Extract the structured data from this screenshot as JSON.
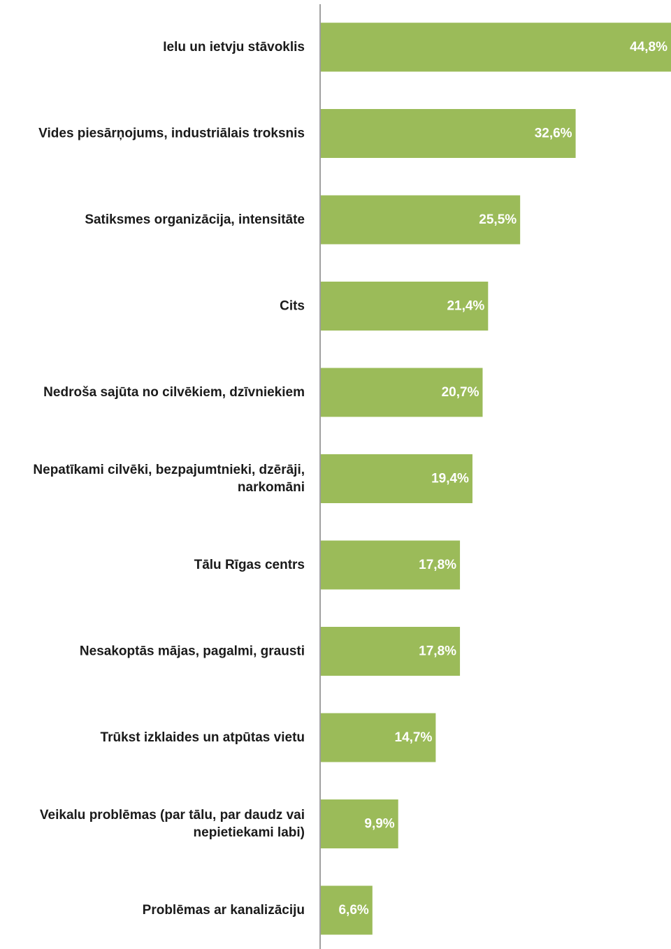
{
  "chart_data": {
    "type": "bar",
    "orientation": "horizontal",
    "categories": [
      "Ielu un ietvju stāvoklis",
      "Vides piesārņojums, industriālais troksnis",
      "Satiksmes organizācija, intensitāte",
      "Cits",
      "Nedroša sajūta no cilvēkiem, dzīvniekiem",
      "Nepatīkami cilvēki, bezpajumtnieki, dzērāji, narkomāni",
      "Tālu Rīgas centrs",
      "Nesakoptās mājas, pagalmi, grausti",
      "Trūkst izklaides un atpūtas vietu",
      "Veikalu problēmas (par tālu, par daudz vai nepietiekami labi)",
      "Problēmas ar kanalizāciju"
    ],
    "category_lines": [
      [
        "Ielu un ietvju stāvoklis"
      ],
      [
        "Vides piesārņojums, industriālais troksnis"
      ],
      [
        "Satiksmes organizācija, intensitāte"
      ],
      [
        "Cits"
      ],
      [
        "Nedroša sajūta no cilvēkiem, dzīvniekiem"
      ],
      [
        "Nepatīkami cilvēki, bezpajumtnieki, dzērāji,",
        "narkomāni"
      ],
      [
        "Tālu Rīgas centrs"
      ],
      [
        "Nesakoptās mājas, pagalmi, grausti"
      ],
      [
        "Trūkst izklaides un atpūtas vietu"
      ],
      [
        "Veikalu problēmas (par tālu, par daudz vai",
        "nepietiekami labi)"
      ],
      [
        "Problēmas ar kanalizāciju"
      ]
    ],
    "values": [
      44.8,
      32.6,
      25.5,
      21.4,
      20.7,
      19.4,
      17.8,
      17.8,
      14.7,
      9.9,
      6.6
    ],
    "value_labels": [
      "44,8%",
      "32,6%",
      "25,5%",
      "21,4%",
      "20,7%",
      "19,4%",
      "17,8%",
      "17,8%",
      "14,7%",
      "9,9%",
      "6,6%"
    ],
    "xlim": [
      0,
      44.8
    ],
    "grid": false,
    "legend": "none",
    "bar_color": "#9bbb59",
    "axis_color": "#808080"
  }
}
